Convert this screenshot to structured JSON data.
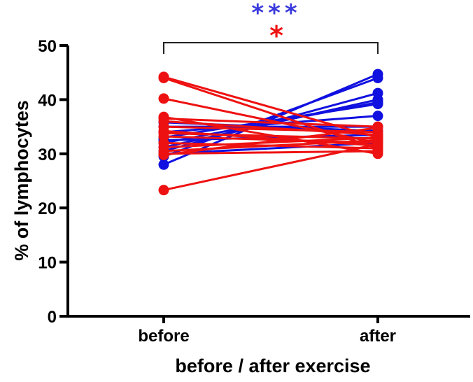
{
  "chart_data": {
    "type": "scatter",
    "subtype": "before-after paired lines",
    "categories": [
      "before",
      "after"
    ],
    "xlabel": "before / after exercise",
    "ylabel": "% of lymphocytes",
    "ylim": [
      0,
      50
    ],
    "yticks": [
      0,
      10,
      20,
      30,
      40,
      50
    ],
    "grid": false,
    "series": [
      {
        "color": "#1010e0",
        "pairs": [
          [
            28.0,
            44.7
          ],
          [
            29.5,
            44.0
          ],
          [
            30.5,
            41.2
          ],
          [
            31.2,
            40.0
          ],
          [
            32.0,
            39.5
          ],
          [
            33.0,
            39.2
          ],
          [
            34.0,
            37.0
          ],
          [
            35.0,
            35.0
          ],
          [
            35.8,
            34.2
          ],
          [
            32.5,
            33.5
          ],
          [
            30.0,
            32.0
          ]
        ]
      },
      {
        "color": "#ee1111",
        "pairs": [
          [
            44.2,
            33.0
          ],
          [
            44.0,
            31.0
          ],
          [
            40.2,
            32.0
          ],
          [
            36.8,
            30.0
          ],
          [
            36.5,
            35.0
          ],
          [
            36.0,
            33.5
          ],
          [
            35.0,
            34.0
          ],
          [
            34.2,
            31.5
          ],
          [
            33.8,
            32.8
          ],
          [
            33.2,
            32.0
          ],
          [
            32.0,
            31.0
          ],
          [
            31.2,
            33.0
          ],
          [
            30.5,
            32.5
          ],
          [
            30.0,
            30.5
          ],
          [
            29.8,
            34.8
          ],
          [
            23.3,
            31.8
          ]
        ]
      }
    ],
    "annotations": [
      {
        "text": "***",
        "color": "#3a3adc"
      },
      {
        "text": "*",
        "color": "#ee1111"
      }
    ]
  }
}
